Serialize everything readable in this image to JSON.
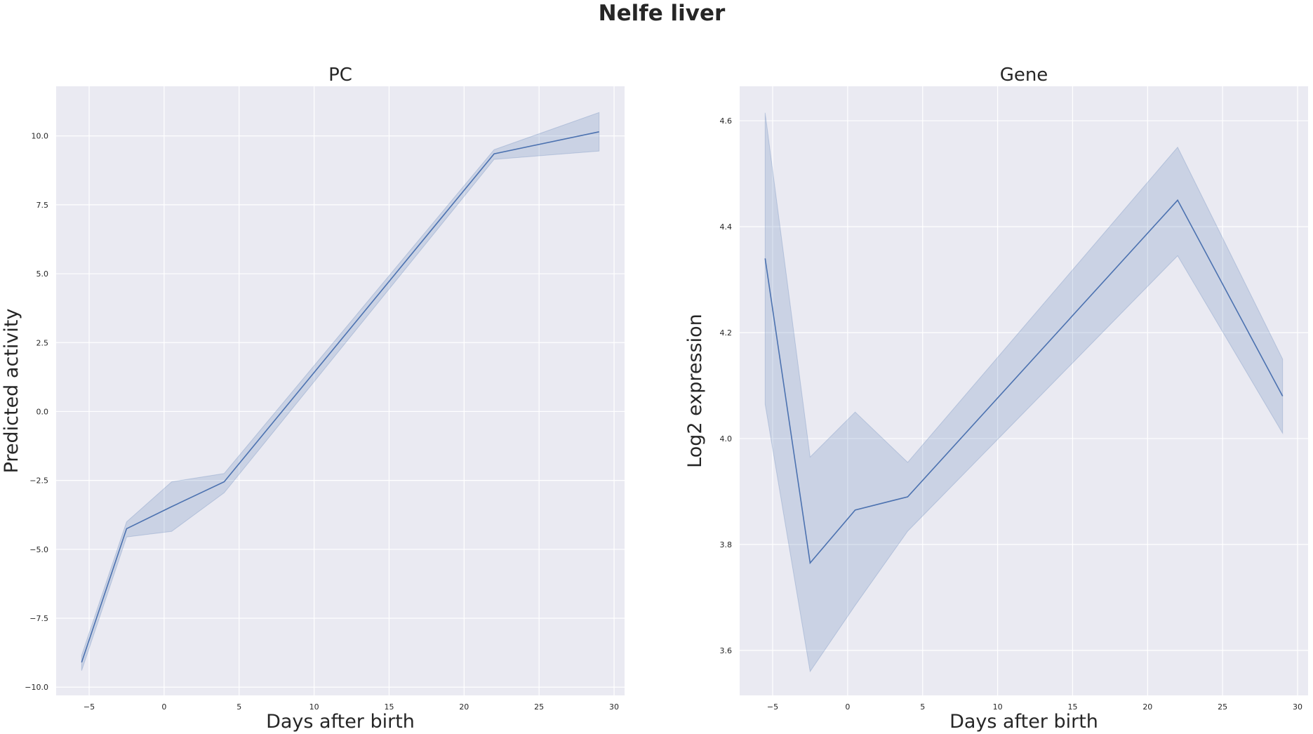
{
  "figure_title": "Nelfe liver",
  "colors": {
    "panel_bg": "#eaeaf2",
    "grid": "#ffffff",
    "line": "#4c72b0"
  },
  "chart_data": [
    {
      "type": "line",
      "title": "PC",
      "xlabel": "Days after birth",
      "ylabel": "Predicted activity",
      "xlim": [
        -7.2,
        30.7
      ],
      "ylim": [
        -10.3,
        11.8
      ],
      "xticks": [
        -5,
        0,
        5,
        10,
        15,
        20,
        25,
        30
      ],
      "xtick_labels": [
        "−5",
        "0",
        "5",
        "10",
        "15",
        "20",
        "25",
        "30"
      ],
      "yticks": [
        -10,
        -7.5,
        -5,
        -2.5,
        0,
        2.5,
        5,
        7.5,
        10
      ],
      "ytick_labels": [
        "−10.0",
        "−7.5",
        "−5.0",
        "−2.5",
        "0.0",
        "2.5",
        "5.0",
        "7.5",
        "10.0"
      ],
      "x": [
        -5.5,
        -2.5,
        0.5,
        4,
        22,
        29
      ],
      "y": [
        -9.1,
        -4.25,
        -3.45,
        -2.55,
        9.35,
        10.15
      ],
      "ci_low": [
        -9.4,
        -4.55,
        -4.35,
        -2.95,
        9.15,
        9.45
      ],
      "ci_high": [
        -8.85,
        -4.0,
        -2.55,
        -2.25,
        9.5,
        10.85
      ]
    },
    {
      "type": "line",
      "title": "Gene",
      "xlabel": "Days after birth",
      "ylabel": "Log2 expression",
      "xlim": [
        -7.2,
        30.7
      ],
      "ylim": [
        3.515,
        4.665
      ],
      "xticks": [
        -5,
        0,
        5,
        10,
        15,
        20,
        25,
        30
      ],
      "xtick_labels": [
        "−5",
        "0",
        "5",
        "10",
        "15",
        "20",
        "25",
        "30"
      ],
      "yticks": [
        3.6,
        3.8,
        4.0,
        4.2,
        4.4,
        4.6
      ],
      "ytick_labels": [
        "3.6",
        "3.8",
        "4.0",
        "4.2",
        "4.4",
        "4.6"
      ],
      "x": [
        -5.5,
        -2.5,
        0.5,
        4,
        22,
        29
      ],
      "y": [
        4.34,
        3.765,
        3.865,
        3.89,
        4.45,
        4.08
      ],
      "ci_low": [
        4.065,
        3.56,
        3.685,
        3.825,
        4.345,
        4.01
      ],
      "ci_high": [
        4.615,
        3.965,
        4.05,
        3.955,
        4.55,
        4.15
      ]
    }
  ]
}
